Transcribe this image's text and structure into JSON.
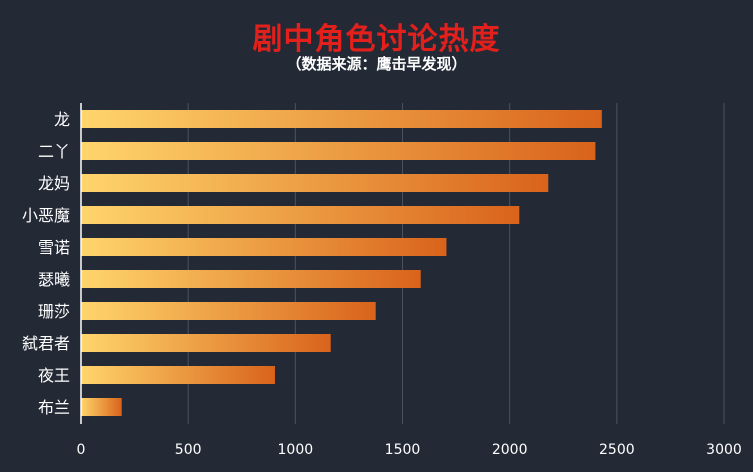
{
  "chart_data": {
    "type": "bar",
    "orientation": "horizontal",
    "title": "剧中角色讨论热度",
    "subtitle": "（数据来源：鹰击早发现）",
    "categories": [
      "龙",
      "二丫",
      "龙妈",
      "小恶魔",
      "雪诺",
      "瑟曦",
      "珊莎",
      "弑君者",
      "夜王",
      "布兰"
    ],
    "values": [
      2430,
      2400,
      2180,
      2045,
      1705,
      1585,
      1375,
      1165,
      905,
      190
    ],
    "xlim": [
      0,
      3000
    ],
    "xticks": [
      0,
      500,
      1000,
      1500,
      2000,
      2500,
      3000
    ],
    "grid": true,
    "legend": "none",
    "colors": {
      "background": "#232a36",
      "bar_start": "#ffd56c",
      "bar_end": "#d9631b",
      "title": "#e3201b",
      "gridline": "#4a5260"
    }
  }
}
